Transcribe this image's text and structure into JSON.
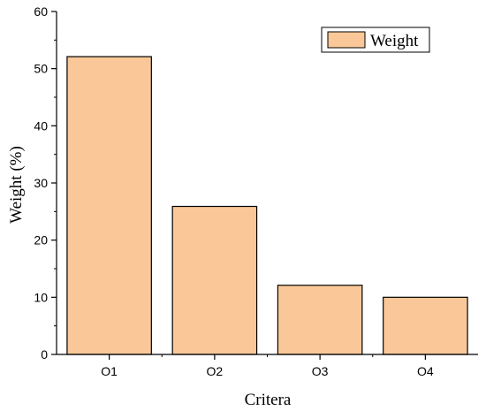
{
  "chart_data": {
    "type": "bar",
    "categories": [
      "O1",
      "O2",
      "O3",
      "O4"
    ],
    "series": [
      {
        "name": "Weight",
        "values": [
          52.1,
          25.9,
          12.1,
          10.0
        ]
      }
    ],
    "xlabel": "Critera",
    "ylabel": "Weight (%)",
    "ylim": [
      0,
      60
    ],
    "yticks": [
      "0",
      "10",
      "20",
      "30",
      "40",
      "50",
      "60"
    ],
    "grid": false,
    "legend_position": "top-right",
    "bar_color": "#fac898"
  }
}
